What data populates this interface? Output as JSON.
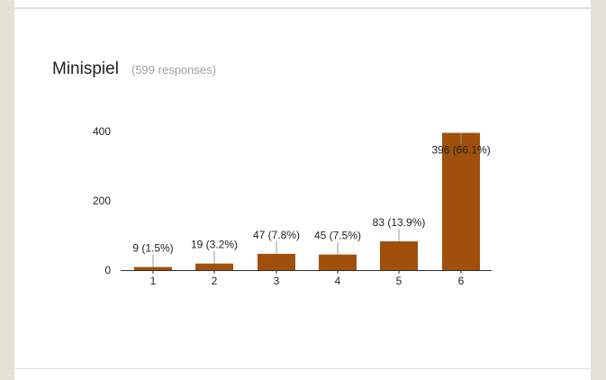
{
  "question": {
    "title": "Minispiel",
    "responses_label": "(599 responses)"
  },
  "colors": {
    "bar": "#a0500c",
    "axis": "#333333",
    "label_line": "#999999",
    "text": "#222222"
  },
  "chart_data": {
    "type": "bar",
    "categories": [
      "1",
      "2",
      "3",
      "4",
      "5",
      "6"
    ],
    "values": [
      9,
      19,
      47,
      45,
      83,
      396
    ],
    "data_labels": [
      "9 (1.5%)",
      "19 (3.2%)",
      "47 (7.8%)",
      "45 (7.5%)",
      "83 (13.9%)",
      "396 (66.1%)"
    ],
    "yticks": [
      0,
      200,
      400
    ],
    "ylim": [
      0,
      400
    ],
    "grid": false
  }
}
